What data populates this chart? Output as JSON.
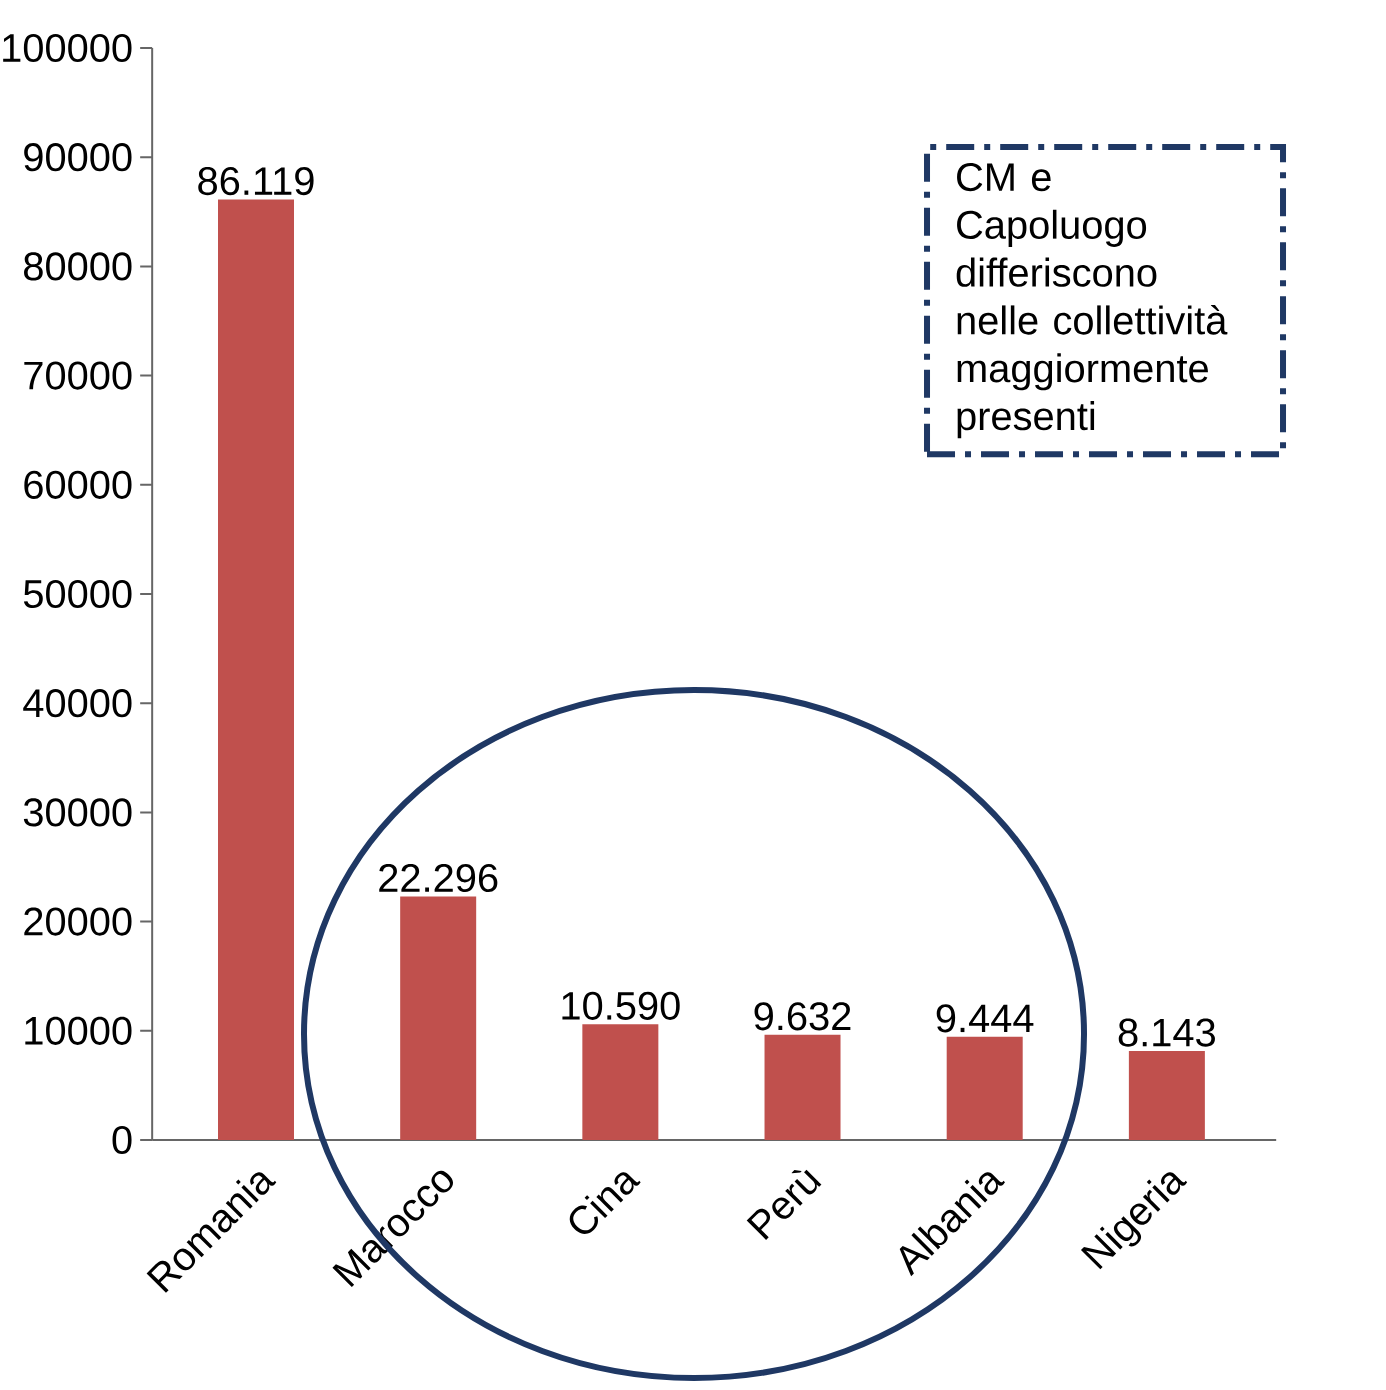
{
  "chart_data": {
    "type": "bar",
    "categories": [
      "Romania",
      "Marocco",
      "Cina",
      "Perù",
      "Albania",
      "Nigeria"
    ],
    "values": [
      86119,
      22296,
      10590,
      9632,
      9444,
      8143
    ],
    "value_labels": [
      "86.119",
      "22.296",
      "10.590",
      "9.632",
      "9.444",
      "8.143"
    ],
    "color": "#c0504d",
    "ylim": [
      0,
      100000
    ],
    "yticks": [
      0,
      10000,
      20000,
      30000,
      40000,
      50000,
      60000,
      70000,
      80000,
      90000,
      100000
    ],
    "grid": false,
    "annotations": [
      "CM e Capoluogo differiscono nelle collettività maggiormente presenti"
    ]
  }
}
